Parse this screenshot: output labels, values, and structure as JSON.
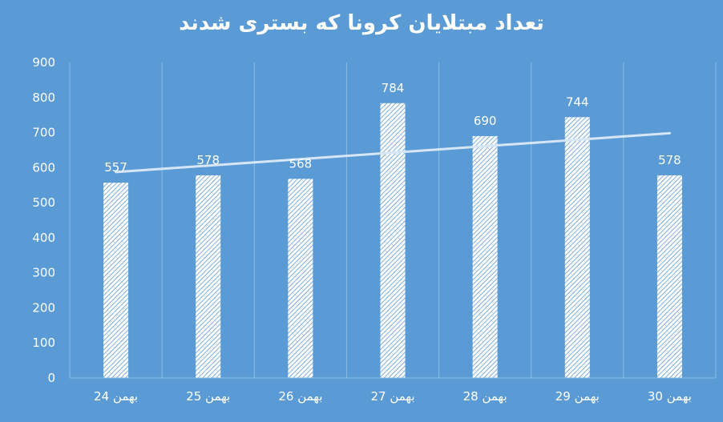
{
  "chart_data": {
    "type": "bar",
    "title": "تعداد مبتلایان کرونا که بستری شدند",
    "categories": [
      "24 بهمن",
      "25 بهمن",
      "26 بهمن",
      "27 بهمن",
      "28 بهمن",
      "29 بهمن",
      "30 بهمن"
    ],
    "series": [
      {
        "values": [
          557,
          578,
          568,
          784,
          690,
          744,
          578
        ]
      }
    ],
    "data_labels": true,
    "trendline": {
      "type": "linear"
    },
    "ylim": [
      0,
      900
    ],
    "yticks": [
      0,
      100,
      200,
      300,
      400,
      500,
      600,
      700,
      800,
      900
    ],
    "xlabel": "",
    "ylabel": "",
    "grid": {
      "vertical": true,
      "horizontal": false
    },
    "legend": "none",
    "colors": {
      "background": "#5b9bd5",
      "bar_fill": "#ffffff",
      "bar_hatch": "#5b9bd5",
      "trendline": "#d6e6f5",
      "text": "#ffffff",
      "grid": "#8fbce6"
    }
  }
}
